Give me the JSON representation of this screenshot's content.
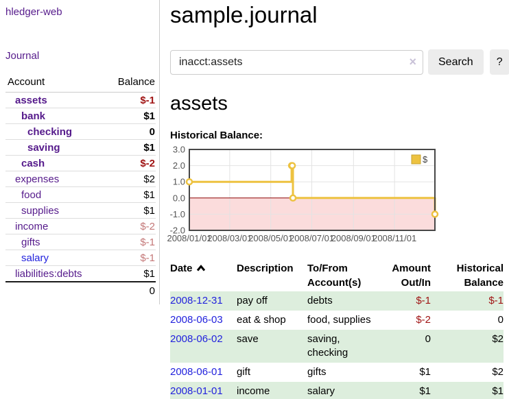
{
  "sidebar": {
    "brand": "hledger-web",
    "nav": {
      "journal_label": "Journal"
    },
    "accounts_table": {
      "headers": {
        "account": "Account",
        "balance": "Balance"
      },
      "accounts": [
        {
          "name": "assets",
          "balance": "$-1",
          "depth": 1
        },
        {
          "name": "bank",
          "balance": "$1",
          "depth": 2
        },
        {
          "name": "checking",
          "balance": "0",
          "depth": 3
        },
        {
          "name": "saving",
          "balance": "$1",
          "depth": 3
        },
        {
          "name": "cash",
          "balance": "$-2",
          "depth": 2
        },
        {
          "name": "expenses",
          "balance": "$2",
          "depth": 1
        },
        {
          "name": "food",
          "balance": "$1",
          "depth": 2
        },
        {
          "name": "supplies",
          "balance": "$1",
          "depth": 2
        },
        {
          "name": "income",
          "balance": "$-2",
          "depth": 1
        },
        {
          "name": "gifts",
          "balance": "$-1",
          "depth": 2
        },
        {
          "name": "salary",
          "balance": "$-1",
          "depth": 2
        },
        {
          "name": "liabilities:debts",
          "balance": "$1",
          "depth": 1
        }
      ],
      "total": "0"
    }
  },
  "main": {
    "title": "sample.journal",
    "search": {
      "query": "inacct:assets",
      "clear_icon": "×",
      "search_label": "Search",
      "help_label": "?"
    },
    "account_heading": "assets",
    "chart_label": "Historical Balance:"
  },
  "chart_data": {
    "type": "line",
    "step": true,
    "title": "Historical Balance",
    "series": [
      {
        "name": "$",
        "color": "#edc240",
        "points": [
          [
            "2008-01-01",
            1
          ],
          [
            "2008-06-01",
            2
          ],
          [
            "2008-06-02",
            2
          ],
          [
            "2008-06-03",
            0
          ],
          [
            "2008-12-31",
            -1
          ]
        ]
      }
    ],
    "x_range": [
      "2008-01-01",
      "2008-12-31"
    ],
    "ylim": [
      -2,
      3
    ],
    "yticks": [
      3,
      2,
      1,
      0,
      -1,
      -2
    ],
    "xticks": [
      {
        "date": "2008-01-01",
        "label": "2008/01/01"
      },
      {
        "date": "2008-03-01",
        "label": "2008/03/01"
      },
      {
        "date": "2008-05-01",
        "label": "2008/05/01"
      },
      {
        "date": "2008-07-01",
        "label": "2008/07/01"
      },
      {
        "date": "2008-09-01",
        "label": "2008/09/01"
      },
      {
        "date": "2008-11-01",
        "label": "2008/11/01"
      }
    ],
    "legend": {
      "label": "$",
      "position": "top-right"
    },
    "grid": true,
    "negative_fill": "#fbdcdc",
    "zero_line_color": "#8b0000",
    "border_color": "#474747"
  },
  "register": {
    "headers": {
      "date": "Date",
      "description": "Description",
      "accounts": "To/From Account(s)",
      "amount": "Amount Out/In",
      "balance": "Historical Balance"
    },
    "sort_icon": "chevron-up",
    "rows": [
      {
        "date": "2008-12-31",
        "description": "pay off",
        "accounts": "debts",
        "amount": "$-1",
        "balance": "$-1"
      },
      {
        "date": "2008-06-03",
        "description": "eat & shop",
        "accounts": "food, supplies",
        "amount": "$-2",
        "balance": "0"
      },
      {
        "date": "2008-06-02",
        "description": "save",
        "accounts": "saving, checking",
        "amount": "0",
        "balance": "$2"
      },
      {
        "date": "2008-06-01",
        "description": "gift",
        "accounts": "gifts",
        "amount": "$1",
        "balance": "$2"
      },
      {
        "date": "2008-01-01",
        "description": "income",
        "accounts": "salary",
        "amount": "$1",
        "balance": "$1"
      }
    ]
  },
  "colors": {
    "link_purple": "#551a8b",
    "link_blue": "#2222dd",
    "negative_dark": "#a01414",
    "negative_soft": "#c47878",
    "row_green": "#ddeedd",
    "chart_line_gold": "#edc240",
    "chart_negative_fill": "#fbdcdc",
    "chart_zero_line": "#8b0000"
  }
}
